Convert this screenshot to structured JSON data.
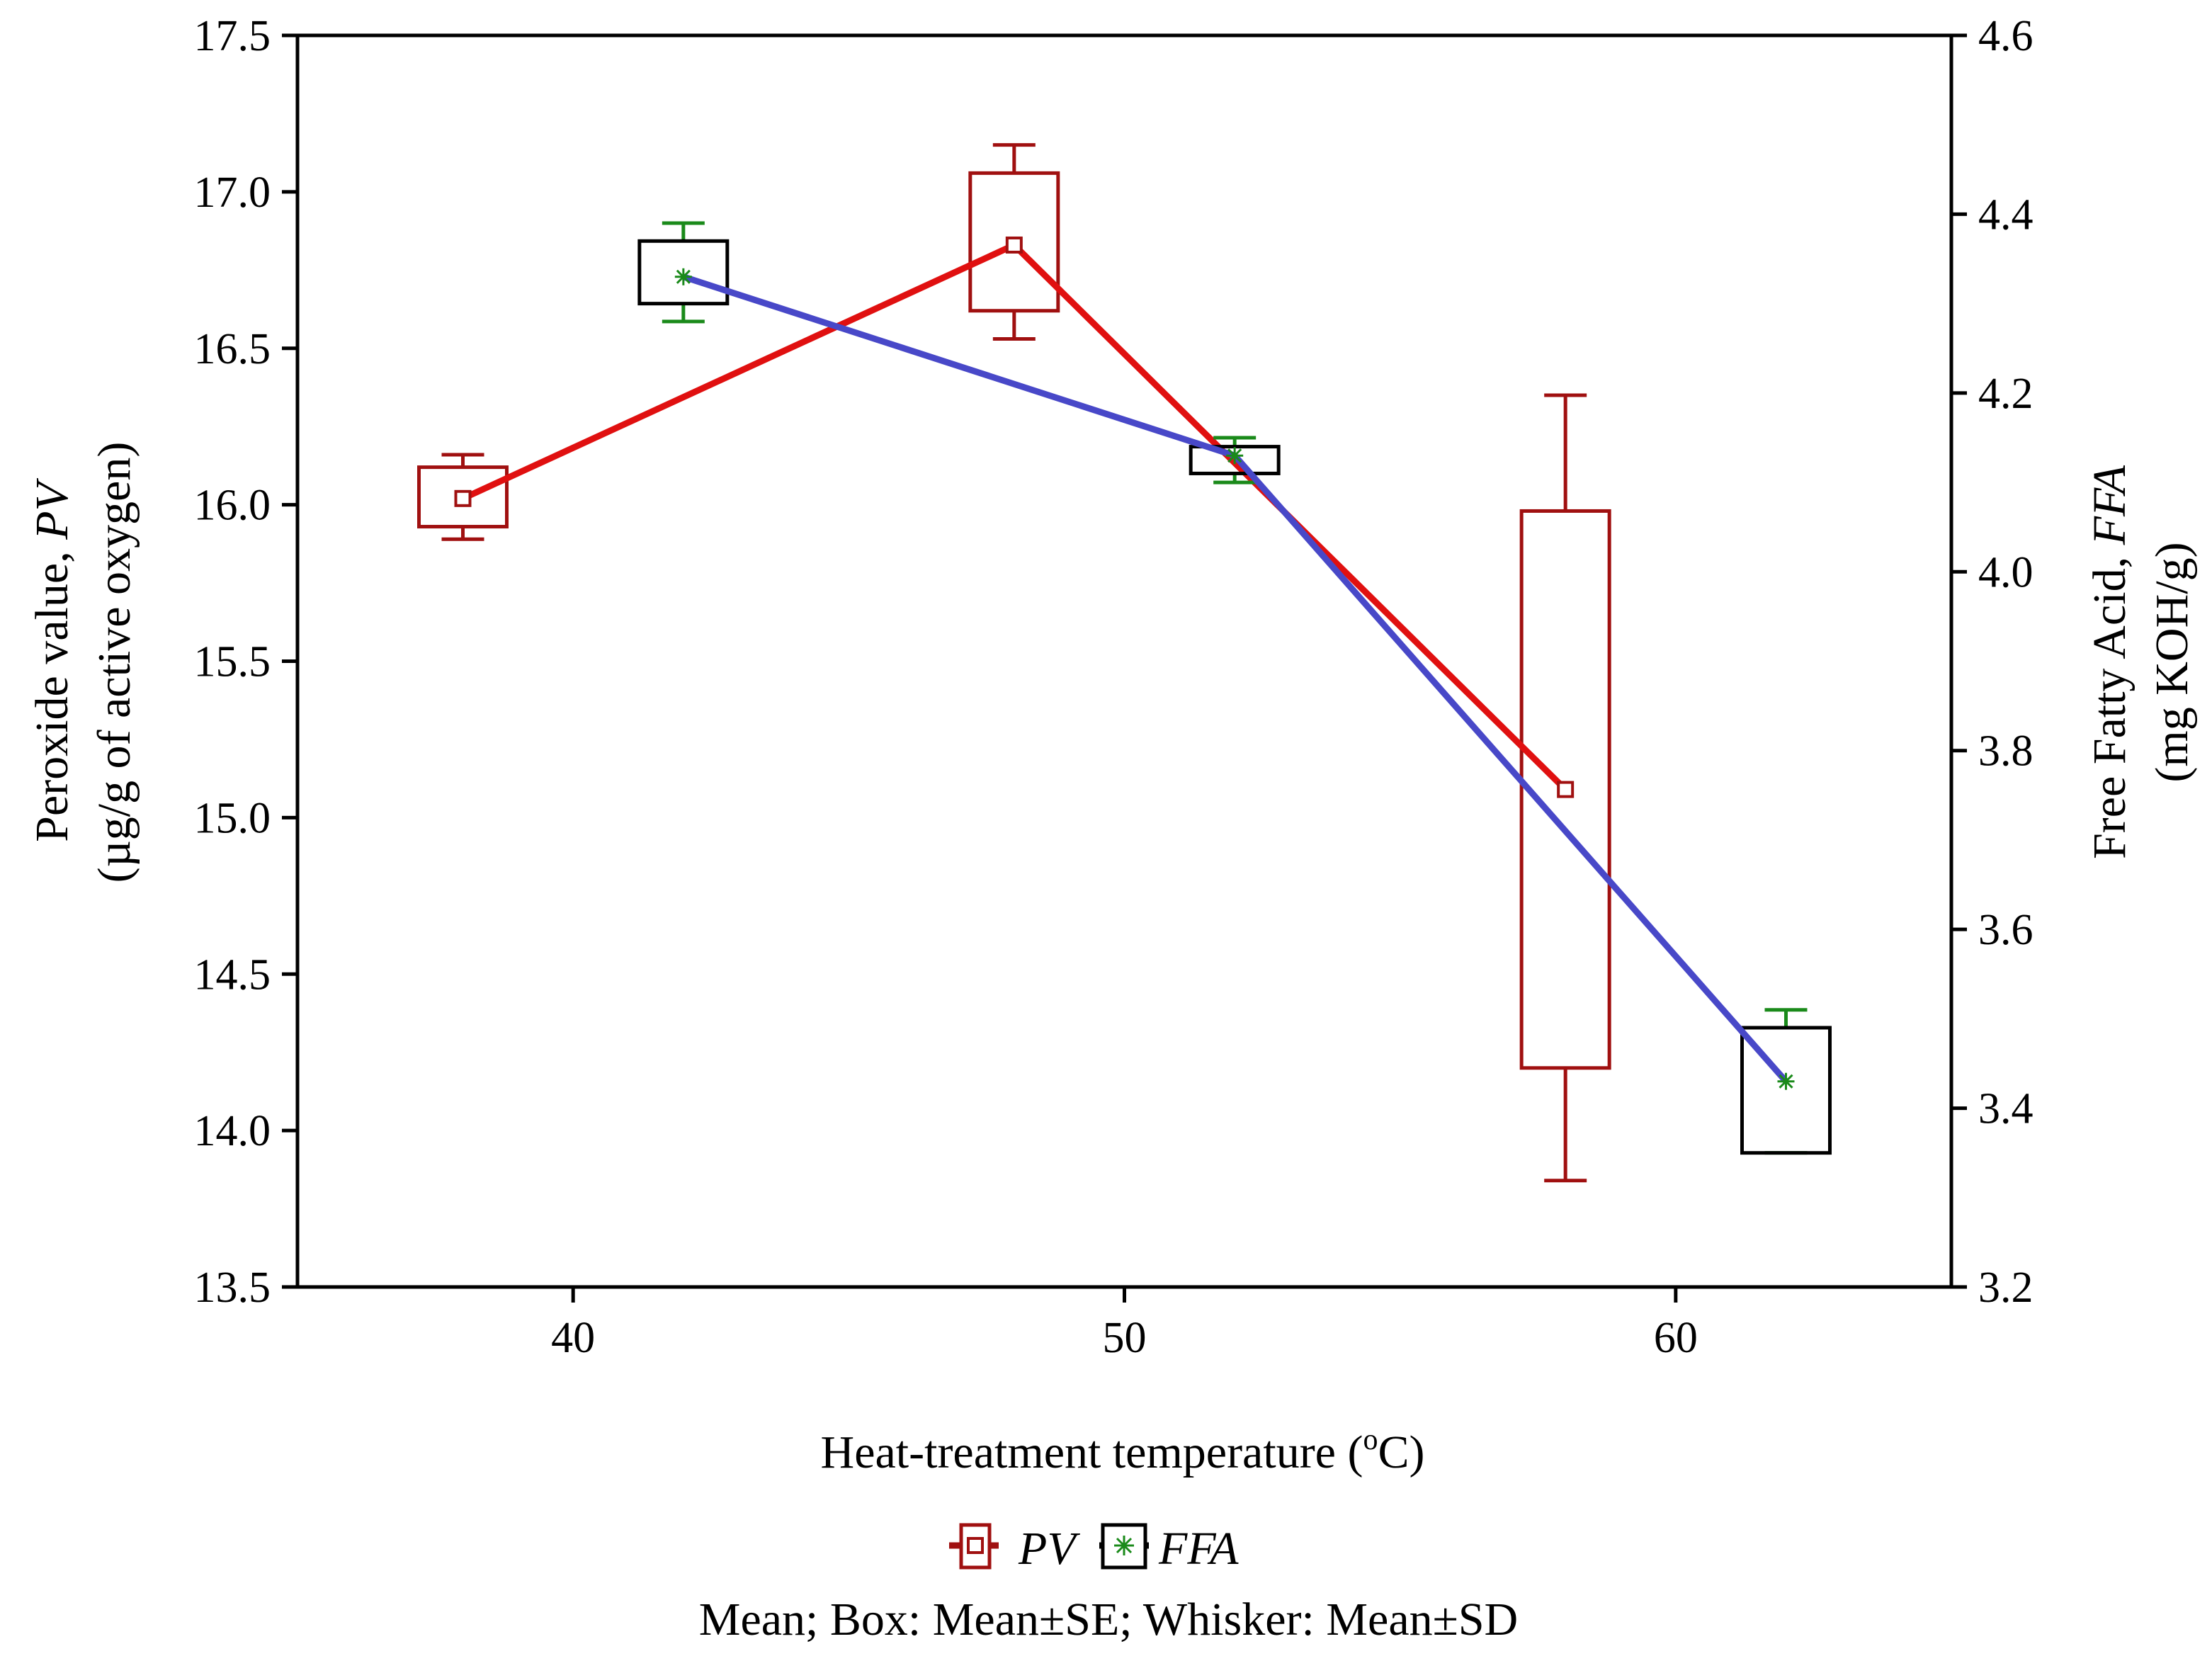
{
  "chart_data": {
    "type": "box",
    "xlabel_main": "Heat-treatment temperature (",
    "xlabel_sup": "o",
    "xlabel_end": "C)",
    "ylabel_left_line1_main": "Peroxide value, ",
    "ylabel_left_line1_italic": "PV",
    "ylabel_left_line2": "(µg/g of active oxygen)",
    "ylabel_right_line1_main": "Free Fatty Acid, ",
    "ylabel_right_line1_italic": "FFA",
    "ylabel_right_line2": "(mg KOH/g)",
    "xlim": [
      35,
      65
    ],
    "xticks": [
      40,
      50,
      60
    ],
    "ylim_left": [
      13.5,
      17.5
    ],
    "yticks_left": [
      "13.5",
      "14.0",
      "14.5",
      "15.0",
      "15.5",
      "16.0",
      "16.5",
      "17.0",
      "17.5"
    ],
    "ylim_right": [
      3.2,
      4.6
    ],
    "yticks_right": [
      "3.2",
      "3.4",
      "3.6",
      "3.8",
      "4.0",
      "4.2",
      "4.4",
      "4.6"
    ],
    "grid": false,
    "legend_position": "bottom",
    "caption": "Mean; Box: Mean±SE; Whisker: Mean±SD",
    "series": [
      {
        "name": "PV",
        "axis": "left",
        "categories": [
          40,
          50,
          60
        ],
        "x_offset": -2,
        "line_color": "#e01010",
        "box_color": "#a01010",
        "whisker_color": "#a01010",
        "marker": "square",
        "mean": [
          16.02,
          16.83,
          15.09
        ],
        "se_low": [
          15.93,
          16.62,
          14.2
        ],
        "se_high": [
          16.12,
          17.06,
          15.98
        ],
        "sd_low": [
          15.89,
          16.53,
          13.84
        ],
        "sd_high": [
          16.16,
          17.15,
          16.35
        ]
      },
      {
        "name": "FFA",
        "axis": "right",
        "categories": [
          40,
          50,
          60
        ],
        "x_offset": 2,
        "line_color": "#4848c8",
        "box_color": "#000000",
        "whisker_color": "#1a8a1a",
        "marker": "asterisk",
        "mean": [
          4.33,
          4.13,
          3.43
        ],
        "se_low": [
          4.3,
          4.11,
          3.35
        ],
        "se_high": [
          4.37,
          4.14,
          3.49
        ],
        "sd_low": [
          4.28,
          4.1,
          3.35
        ],
        "sd_high": [
          4.39,
          4.15,
          3.51
        ]
      }
    ]
  }
}
